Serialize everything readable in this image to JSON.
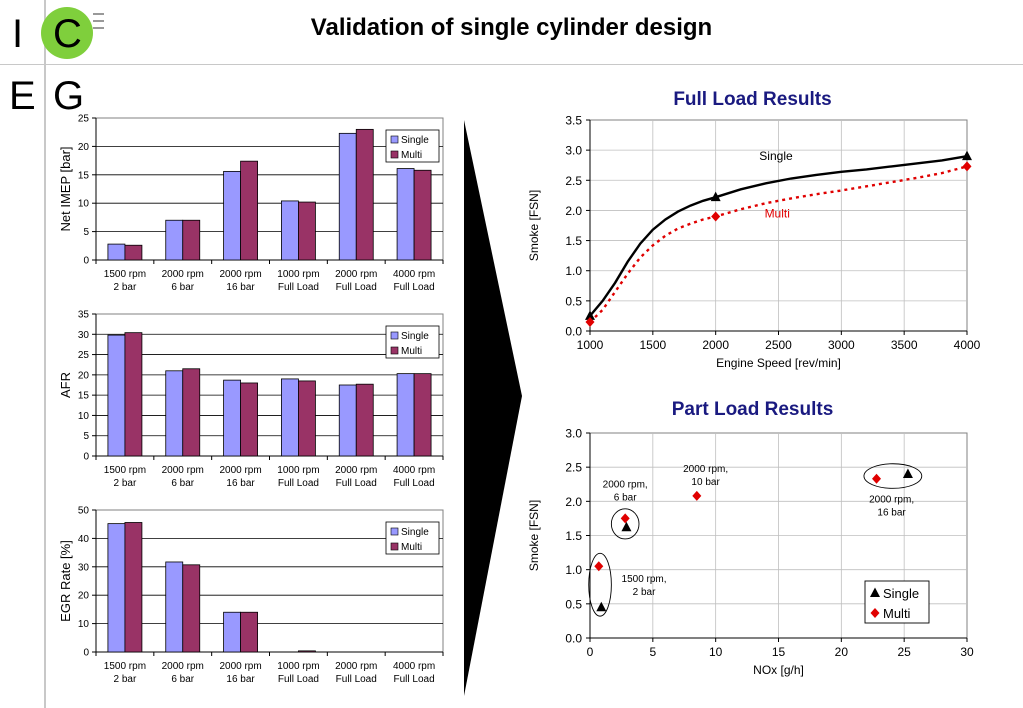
{
  "page": {
    "title": "Validation of single cylinder design"
  },
  "logo": {
    "letters": [
      "I",
      "C",
      "E",
      "G"
    ]
  },
  "colors": {
    "single_bar": "#9999ff",
    "multi_bar": "#993366",
    "multi_line": "#e00000",
    "chart_title": "#1a1a80"
  },
  "chart_data": [
    {
      "type": "bar",
      "categories": [
        [
          "1500 rpm",
          "2 bar"
        ],
        [
          "2000 rpm",
          "6 bar"
        ],
        [
          "2000 rpm",
          "16 bar"
        ],
        [
          "1000 rpm",
          "Full Load"
        ],
        [
          "2000 rpm",
          "Full Load"
        ],
        [
          "4000 rpm",
          "Full Load"
        ]
      ],
      "series": [
        {
          "name": "Single",
          "values": [
            2.8,
            7.0,
            15.6,
            10.4,
            22.3,
            16.1
          ]
        },
        {
          "name": "Multi",
          "values": [
            2.6,
            7.0,
            17.4,
            10.2,
            23.0,
            15.8
          ]
        }
      ],
      "ylabel": "Net IMEP [bar]",
      "ylim": [
        0,
        25
      ],
      "yticks": [
        0,
        5,
        10,
        15,
        20,
        25
      ],
      "grid": true,
      "legend": "top-right"
    },
    {
      "type": "bar",
      "categories": [
        [
          "1500 rpm",
          "2 bar"
        ],
        [
          "2000 rpm",
          "6 bar"
        ],
        [
          "2000 rpm",
          "16 bar"
        ],
        [
          "1000 rpm",
          "Full Load"
        ],
        [
          "2000 rpm",
          "Full Load"
        ],
        [
          "4000 rpm",
          "Full Load"
        ]
      ],
      "series": [
        {
          "name": "Single",
          "values": [
            29.8,
            21.0,
            18.7,
            19.0,
            17.5,
            20.3
          ]
        },
        {
          "name": "Multi",
          "values": [
            30.4,
            21.5,
            18.0,
            18.5,
            17.7,
            20.3
          ]
        }
      ],
      "ylabel": "AFR",
      "ylim": [
        0,
        35
      ],
      "yticks": [
        0,
        5,
        10,
        15,
        20,
        25,
        30,
        35
      ],
      "grid": true,
      "legend": "top-right"
    },
    {
      "type": "bar",
      "categories": [
        [
          "1500 rpm",
          "2 bar"
        ],
        [
          "2000 rpm",
          "6 bar"
        ],
        [
          "2000 rpm",
          "16 bar"
        ],
        [
          "1000 rpm",
          "Full Load"
        ],
        [
          "2000 rpm",
          "Full Load"
        ],
        [
          "4000 rpm",
          "Full Load"
        ]
      ],
      "series": [
        {
          "name": "Single",
          "values": [
            45.2,
            31.7,
            14.0,
            0,
            0,
            0
          ]
        },
        {
          "name": "Multi",
          "values": [
            45.6,
            30.7,
            14.0,
            0.4,
            0,
            0
          ]
        }
      ],
      "ylabel": "EGR Rate [%]",
      "ylim": [
        0,
        50
      ],
      "yticks": [
        0,
        10,
        20,
        30,
        40,
        50
      ],
      "grid": true,
      "legend": "top-right"
    },
    {
      "type": "line",
      "title": "Full Load Results",
      "xlabel": "Engine Speed [rev/min]",
      "ylabel": "Smoke [FSN]",
      "xlim": [
        1000,
        4000
      ],
      "ylim": [
        0,
        3.5
      ],
      "xticks": [
        1000,
        1500,
        2000,
        2500,
        3000,
        3500,
        4000
      ],
      "yticks": [
        0.0,
        0.5,
        1.0,
        1.5,
        2.0,
        2.5,
        3.0,
        3.5
      ],
      "grid": true,
      "series": [
        {
          "name": "Single",
          "style": "solid",
          "marker": "triangle",
          "curve": [
            [
              1000,
              0.25
            ],
            [
              1100,
              0.5
            ],
            [
              1200,
              0.8
            ],
            [
              1300,
              1.15
            ],
            [
              1400,
              1.45
            ],
            [
              1500,
              1.68
            ],
            [
              1600,
              1.85
            ],
            [
              1700,
              1.98
            ],
            [
              1800,
              2.08
            ],
            [
              1900,
              2.16
            ],
            [
              2000,
              2.22
            ],
            [
              2200,
              2.35
            ],
            [
              2400,
              2.45
            ],
            [
              2600,
              2.53
            ],
            [
              2800,
              2.59
            ],
            [
              3000,
              2.64
            ],
            [
              3200,
              2.68
            ],
            [
              3400,
              2.73
            ],
            [
              3600,
              2.78
            ],
            [
              3800,
              2.83
            ],
            [
              4000,
              2.9
            ]
          ],
          "points": [
            [
              1000,
              0.25
            ],
            [
              2000,
              2.22
            ],
            [
              4000,
              2.9
            ]
          ]
        },
        {
          "name": "Multi",
          "style": "dotted",
          "marker": "diamond",
          "curve": [
            [
              1000,
              0.15
            ],
            [
              1100,
              0.35
            ],
            [
              1200,
              0.65
            ],
            [
              1300,
              0.95
            ],
            [
              1400,
              1.22
            ],
            [
              1500,
              1.42
            ],
            [
              1600,
              1.58
            ],
            [
              1700,
              1.7
            ],
            [
              1800,
              1.78
            ],
            [
              1900,
              1.85
            ],
            [
              2000,
              1.9
            ],
            [
              2200,
              2.02
            ],
            [
              2400,
              2.12
            ],
            [
              2600,
              2.2
            ],
            [
              2800,
              2.27
            ],
            [
              3000,
              2.33
            ],
            [
              3200,
              2.4
            ],
            [
              3400,
              2.47
            ],
            [
              3600,
              2.54
            ],
            [
              3800,
              2.62
            ],
            [
              4000,
              2.73
            ]
          ],
          "points": [
            [
              1000,
              0.15
            ],
            [
              2000,
              1.9
            ],
            [
              4000,
              2.73
            ]
          ]
        }
      ],
      "annotations": [
        {
          "text": "Single",
          "x": 2480,
          "y": 2.9
        },
        {
          "text": "Multi",
          "x": 2490,
          "y": 1.95
        }
      ]
    },
    {
      "type": "scatter",
      "title": "Part Load Results",
      "xlabel": "NOx [g/h]",
      "ylabel": "Smoke [FSN]",
      "xlim": [
        0,
        30
      ],
      "ylim": [
        0,
        3.0
      ],
      "xticks": [
        0,
        5,
        10,
        15,
        20,
        25,
        30
      ],
      "yticks": [
        0.0,
        0.5,
        1.0,
        1.5,
        2.0,
        2.5,
        3.0
      ],
      "grid": true,
      "legend": "bottom-right",
      "series": [
        {
          "name": "Single",
          "marker": "triangle",
          "points": [
            [
              0.9,
              0.45
            ],
            [
              2.9,
              1.62
            ],
            [
              25.3,
              2.4
            ]
          ]
        },
        {
          "name": "Multi",
          "marker": "diamond",
          "points": [
            [
              0.7,
              1.05
            ],
            [
              2.8,
              1.75
            ],
            [
              8.5,
              2.08
            ],
            [
              22.8,
              2.33
            ]
          ]
        }
      ],
      "annotations": [
        {
          "lines": [
            "1500 rpm,",
            "2 bar"
          ],
          "x": 4.3,
          "y": 0.82
        },
        {
          "lines": [
            "2000 rpm,",
            "6 bar"
          ],
          "x": 2.8,
          "y": 2.2
        },
        {
          "lines": [
            "2000 rpm,",
            "10 bar"
          ],
          "x": 9.2,
          "y": 2.43
        },
        {
          "lines": [
            "2000 rpm,",
            "16 bar"
          ],
          "x": 24.0,
          "y": 1.98
        }
      ],
      "groups": [
        {
          "cx": 0.8,
          "cy": 0.78,
          "rx": 0.9,
          "ry": 0.46
        },
        {
          "cx": 2.8,
          "cy": 1.67,
          "rx": 1.1,
          "ry": 0.22
        },
        {
          "cx": 24.1,
          "cy": 2.37,
          "rx": 2.3,
          "ry": 0.18
        }
      ]
    }
  ]
}
